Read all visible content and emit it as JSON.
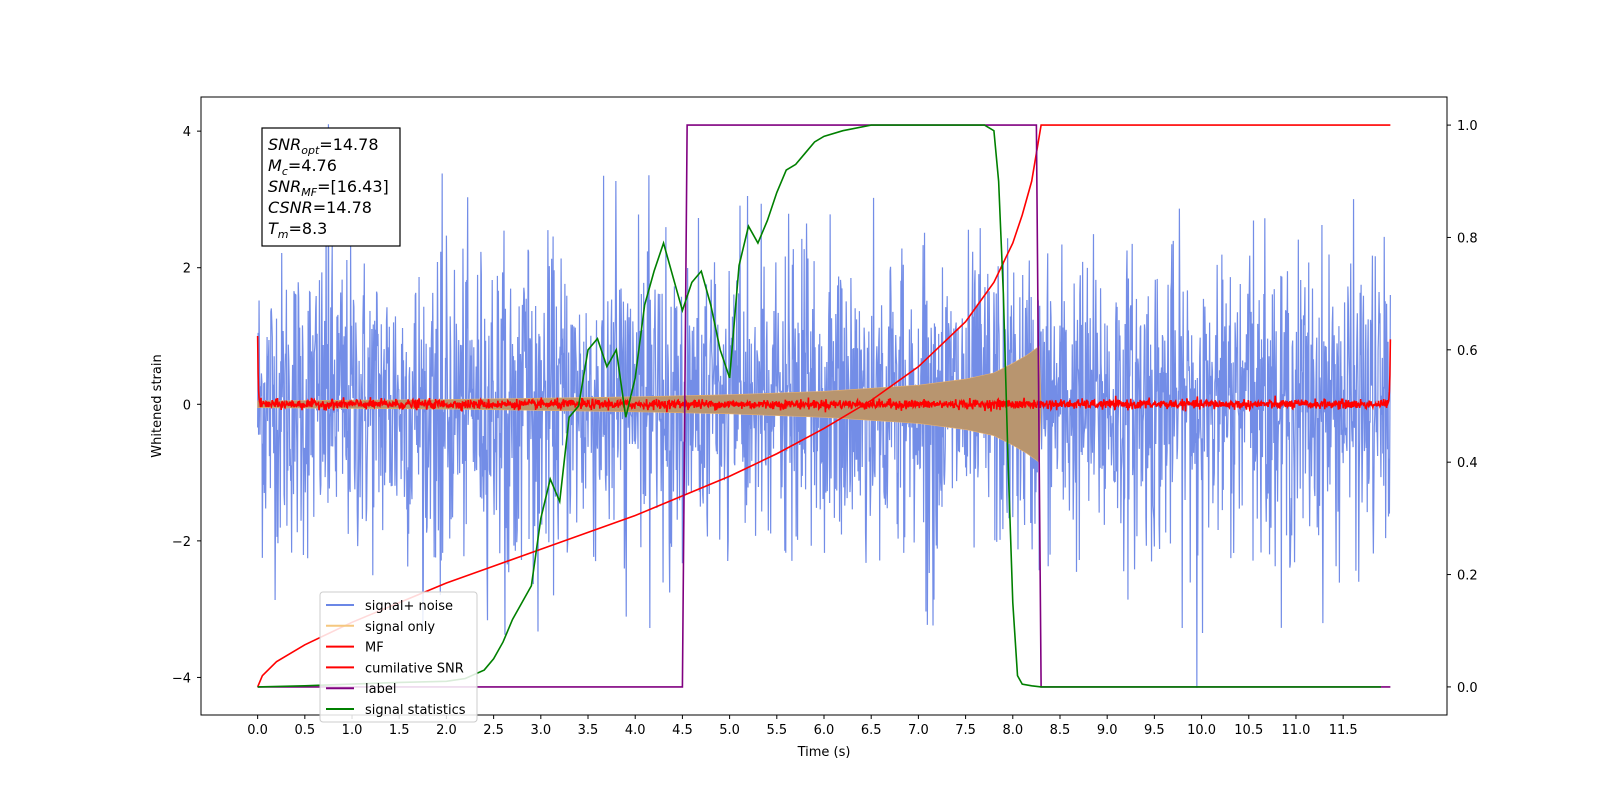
{
  "chart_data": {
    "type": "line",
    "xlabel": "Time (s)",
    "ylabel": "Whitened strain",
    "xlim": [
      -0.6,
      12.6
    ],
    "ylim": [
      -4.55,
      4.5
    ],
    "y2lim": [
      -0.05,
      1.05
    ],
    "xticks": [
      0.0,
      0.5,
      1.0,
      1.5,
      2.0,
      2.5,
      3.0,
      3.5,
      4.0,
      4.5,
      5.0,
      5.5,
      6.0,
      6.5,
      7.0,
      7.5,
      8.0,
      8.5,
      9.0,
      9.5,
      10.0,
      10.5,
      11.0,
      11.5
    ],
    "xtick_labels": [
      "0.0",
      "0.5",
      "1.0",
      "1.5",
      "2.0",
      "2.5",
      "3.0",
      "3.5",
      "4.0",
      "4.5",
      "5.0",
      "5.5",
      "6.0",
      "6.5",
      "7.0",
      "7.5",
      "8.0",
      "8.5",
      "9.0",
      "9.5",
      "10.0",
      "10.5",
      "11.0",
      "11.5"
    ],
    "yticks": [
      -4,
      -2,
      0,
      2,
      4
    ],
    "ytick_labels": [
      "−4",
      "−2",
      "0",
      "2",
      "4"
    ],
    "y2ticks": [
      0.0,
      0.2,
      0.4,
      0.6,
      0.8,
      1.0
    ],
    "y2tick_labels": [
      "0.0",
      "0.2",
      "0.4",
      "0.6",
      "0.8",
      "1.0"
    ],
    "grid": false,
    "legend_position": "lower-left",
    "colors": {
      "signal_noise": "#6b87e6",
      "signal_only": "#e7b06f",
      "signal_only_fill": "#b8956f",
      "mf": "#ff0000",
      "cumulative_snr": "#ff0000",
      "label": "#800080",
      "signal_statistics": "#008000"
    },
    "legend": [
      {
        "label": "signal+ noise",
        "color": "#6b87e6"
      },
      {
        "label": "signal only",
        "color": "#f5c77f"
      },
      {
        "label": "MF",
        "color": "#ff0000"
      },
      {
        "label": "cumilative SNR",
        "color": "#ff0000"
      },
      {
        "label": "label",
        "color": "#800080"
      },
      {
        "label": "signal statistics",
        "color": "#008000"
      }
    ],
    "annotation": {
      "lines": [
        {
          "sym": "SNR",
          "sub": "opt",
          "val": "=14.78"
        },
        {
          "sym": "M",
          "sub": "c",
          "val": "=4.76"
        },
        {
          "sym": "SNR",
          "sub": "MF",
          "val": "=[16.43]"
        },
        {
          "sym": "CSNR",
          "sub": "",
          "val": "=14.78"
        },
        {
          "sym": "T",
          "sub": "m",
          "val": "=8.3"
        }
      ]
    },
    "series": [
      {
        "name": "signal+ noise",
        "axis": "left",
        "kind": "noise",
        "x_range": [
          0.0,
          12.0
        ],
        "amplitude_envelope": 3.4,
        "outliers": [
          [
            0.75,
            4.1
          ],
          [
            9.95,
            -4.15
          ]
        ]
      },
      {
        "name": "signal only",
        "axis": "left",
        "kind": "chirp_envelope",
        "x": [
          0.0,
          1.0,
          2.0,
          3.0,
          4.0,
          5.0,
          6.0,
          7.0,
          7.5,
          7.8,
          8.0,
          8.15,
          8.28,
          8.3
        ],
        "upper": [
          0.05,
          0.06,
          0.07,
          0.09,
          0.11,
          0.14,
          0.19,
          0.28,
          0.37,
          0.46,
          0.6,
          0.72,
          0.85,
          0.0
        ],
        "lower": [
          -0.05,
          -0.06,
          -0.07,
          -0.09,
          -0.11,
          -0.14,
          -0.19,
          -0.28,
          -0.37,
          -0.46,
          -0.6,
          -0.72,
          -0.85,
          0.0
        ]
      },
      {
        "name": "MF",
        "axis": "left",
        "kind": "noise_small",
        "x_range": [
          0.0,
          12.0
        ],
        "amplitude_envelope": 0.08,
        "edge_spikes": [
          [
            0.0,
            1.0
          ],
          [
            12.0,
            0.95
          ]
        ]
      },
      {
        "name": "cumilative SNR",
        "axis": "right",
        "x": [
          0.0,
          0.05,
          0.2,
          0.5,
          1.0,
          1.5,
          2.0,
          2.5,
          3.0,
          3.5,
          4.0,
          4.5,
          5.0,
          5.5,
          6.0,
          6.5,
          7.0,
          7.5,
          7.8,
          8.0,
          8.1,
          8.2,
          8.25,
          8.3,
          9.0,
          10.0,
          11.0,
          12.0
        ],
        "y": [
          0.0,
          0.02,
          0.045,
          0.075,
          0.115,
          0.15,
          0.185,
          0.215,
          0.245,
          0.275,
          0.305,
          0.34,
          0.375,
          0.415,
          0.46,
          0.51,
          0.57,
          0.65,
          0.72,
          0.79,
          0.84,
          0.9,
          0.95,
          1.0,
          1.0,
          1.0,
          1.0,
          1.0
        ]
      },
      {
        "name": "label",
        "axis": "right",
        "x": [
          0.0,
          4.5,
          4.55,
          8.25,
          8.3,
          12.0
        ],
        "y": [
          0.0,
          0.0,
          1.0,
          1.0,
          0.0,
          0.0
        ]
      },
      {
        "name": "signal statistics",
        "axis": "right",
        "x": [
          0.0,
          0.5,
          1.0,
          1.5,
          2.0,
          2.2,
          2.4,
          2.5,
          2.6,
          2.7,
          2.8,
          2.9,
          3.0,
          3.1,
          3.2,
          3.3,
          3.4,
          3.5,
          3.6,
          3.7,
          3.8,
          3.9,
          4.0,
          4.1,
          4.2,
          4.3,
          4.4,
          4.5,
          4.6,
          4.7,
          4.8,
          4.9,
          5.0,
          5.1,
          5.2,
          5.3,
          5.4,
          5.5,
          5.6,
          5.7,
          5.8,
          5.9,
          6.0,
          6.2,
          6.5,
          6.8,
          7.0,
          7.5,
          7.7,
          7.8,
          7.85,
          7.9,
          7.95,
          8.0,
          8.05,
          8.1,
          8.2,
          8.3,
          8.5,
          9.0,
          10.0,
          11.0,
          11.9
        ],
        "y": [
          0.0,
          0.002,
          0.005,
          0.008,
          0.01,
          0.015,
          0.03,
          0.05,
          0.08,
          0.12,
          0.15,
          0.18,
          0.3,
          0.37,
          0.33,
          0.48,
          0.5,
          0.6,
          0.62,
          0.57,
          0.6,
          0.48,
          0.55,
          0.68,
          0.74,
          0.79,
          0.73,
          0.67,
          0.72,
          0.74,
          0.68,
          0.6,
          0.55,
          0.75,
          0.82,
          0.79,
          0.83,
          0.88,
          0.92,
          0.93,
          0.95,
          0.97,
          0.98,
          0.99,
          1.0,
          1.0,
          1.0,
          1.0,
          1.0,
          0.99,
          0.9,
          0.7,
          0.4,
          0.15,
          0.02,
          0.005,
          0.002,
          0.0,
          0.0,
          0.0,
          0.0,
          0.0,
          0.0
        ]
      }
    ]
  }
}
